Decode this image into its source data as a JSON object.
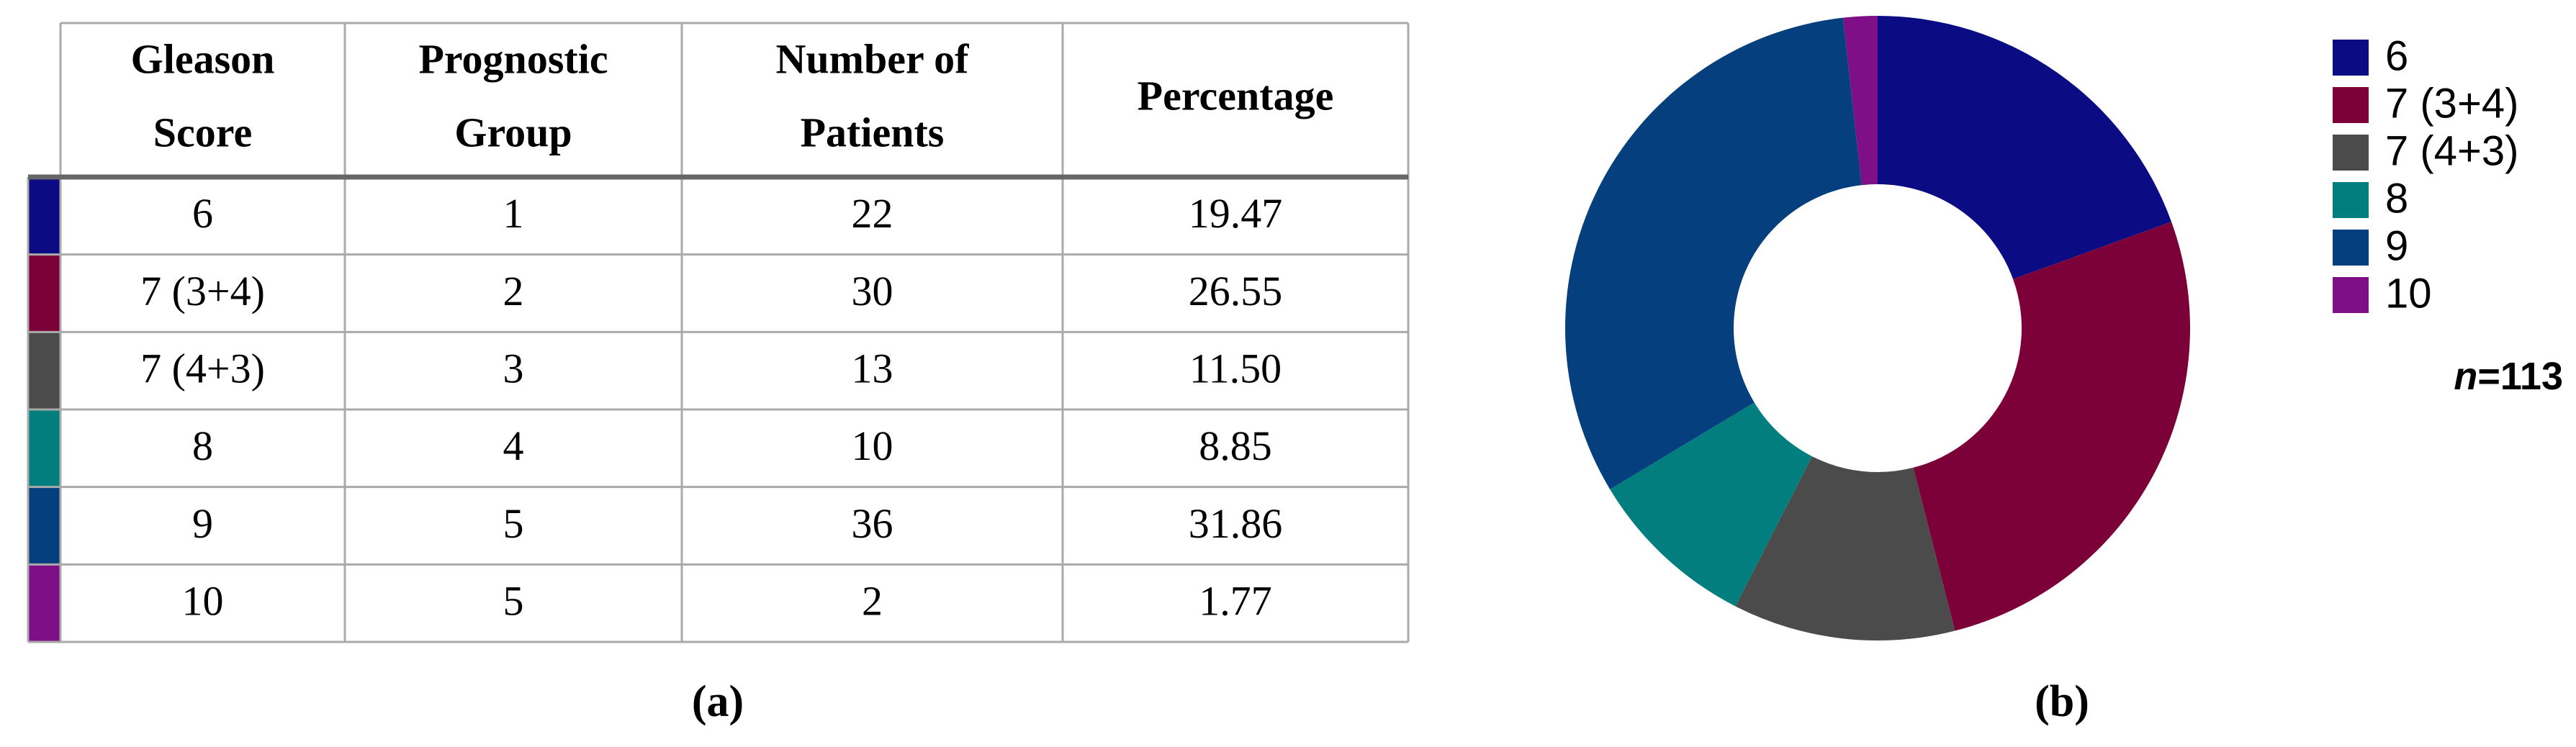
{
  "table": {
    "headers": [
      [
        "Gleason",
        "Score"
      ],
      [
        "Prognostic",
        "Group"
      ],
      [
        "Number of",
        "Patients"
      ],
      [
        "Percentage"
      ]
    ],
    "rows": [
      [
        "6",
        "1",
        "22",
        "19.47"
      ],
      [
        "7 (3+4)",
        "2",
        "30",
        "26.55"
      ],
      [
        "7 (4+3)",
        "3",
        "13",
        "11.50"
      ],
      [
        "8",
        "4",
        "10",
        "8.85"
      ],
      [
        "9",
        "5",
        "36",
        "31.86"
      ],
      [
        "10",
        "5",
        "2",
        "1.77"
      ]
    ],
    "caption": "(a)"
  },
  "chart_data": {
    "type": "donut",
    "series": [
      {
        "name": "6",
        "color": "#0b0b84",
        "values": [
          19.47
        ]
      },
      {
        "name": "7 (3+4)",
        "color": "#7d0139",
        "values": [
          26.55
        ]
      },
      {
        "name": "7 (4+3)",
        "color": "#4b4b4b",
        "values": [
          11.5
        ]
      },
      {
        "name": "8",
        "color": "#027e7e",
        "values": [
          8.85
        ]
      },
      {
        "name": "9",
        "color": "#053f7e",
        "values": [
          31.86
        ]
      },
      {
        "name": "10",
        "color": "#7e0f86",
        "values": [
          1.77
        ]
      }
    ],
    "annotation": [
      "n",
      "=113"
    ],
    "legend": "right",
    "caption": "(b)"
  }
}
